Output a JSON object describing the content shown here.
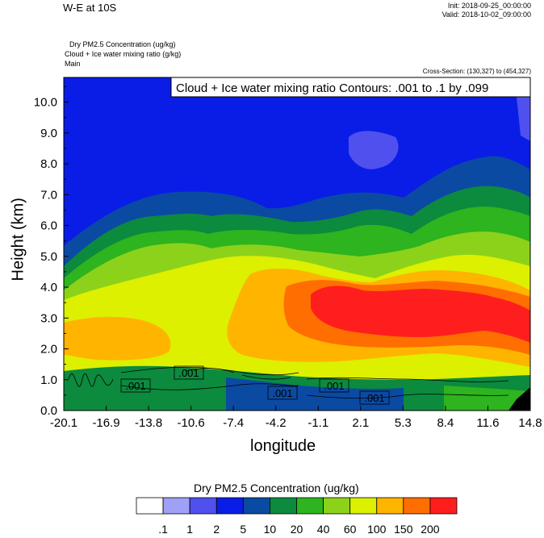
{
  "header": {
    "title": "W-E at 10S",
    "init": "Init: 2018-09-25_00:00:00",
    "valid": "Valid: 2018-10-02_09:00:00",
    "field_line_1": "Dry PM2.5 Concentration   (ug/kg)",
    "field_line_2": "Cloud + Ice water mixing ratio   (g/kg)",
    "field_line_3": "Main",
    "cross_section": "Cross-Section: (130,327) to (454,327)"
  },
  "chart_data": {
    "type": "heatmap",
    "xlabel": "longitude",
    "ylabel": "Height (km)",
    "x_ticks": [
      "-20.1",
      "-16.9",
      "-13.8",
      "-10.6",
      "-7.4",
      "-4.2",
      "-1.1",
      "2.1",
      "5.3",
      "8.4",
      "11.6",
      "14.8"
    ],
    "y_ticks": [
      "0.0",
      "1.0",
      "2.0",
      "3.0",
      "4.0",
      "5.0",
      "6.0",
      "7.0",
      "8.0",
      "9.0",
      "10.0"
    ],
    "xlim": [
      -20.1,
      14.8
    ],
    "ylim": [
      0,
      10.8
    ],
    "contour_title": "Cloud + Ice water mixing ratio Contours: .001 to .1 by .099",
    "contour_labels": [
      ".001",
      ".001",
      ".001",
      ".001",
      ".001"
    ],
    "colorbar": {
      "title": "Dry PM2.5 Concentration  (ug/kg)",
      "labels": [
        ".1",
        "1",
        "2",
        "5",
        "10",
        "20",
        "40",
        "60",
        "100",
        "150",
        "200"
      ],
      "colors": [
        "#ffffff",
        "#a0a0f6",
        "#5050ee",
        "#0a1de6",
        "#0b4aa3",
        "#0c8a3e",
        "#2db41e",
        "#8cd21a",
        "#dcf000",
        "#ffb400",
        "#ff6e00",
        "#ff1e1e"
      ]
    }
  }
}
